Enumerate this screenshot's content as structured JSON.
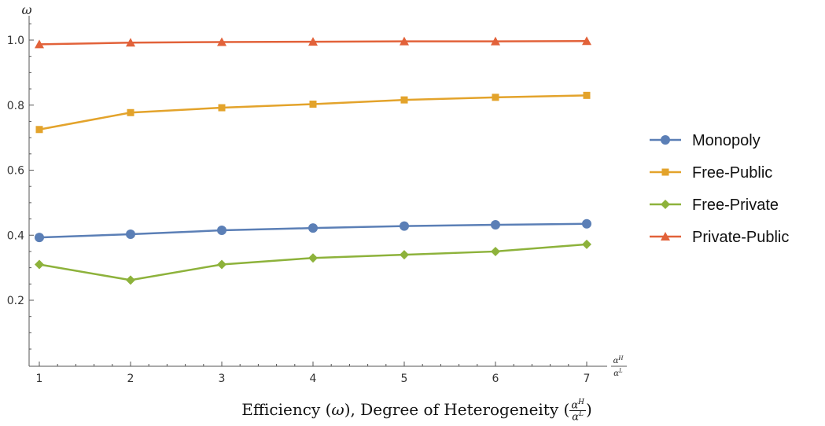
{
  "chart_data": {
    "type": "line",
    "x": [
      1,
      2,
      3,
      4,
      5,
      6,
      7
    ],
    "xticks": [
      "1",
      "2",
      "3",
      "4",
      "5",
      "6",
      "7"
    ],
    "yticks": [
      "0.2",
      "0.4",
      "0.6",
      "0.8",
      "1.0"
    ],
    "ylabel": "ω",
    "xlabel_axis": "αH/αL",
    "caption": "Efficiency (ω), Degree of Heterogeneity (αH/αL)",
    "xlim": [
      0.95,
      7.2
    ],
    "ylim": [
      0,
      1.05
    ],
    "grid": false,
    "legend_position": "right",
    "series": [
      {
        "name": "Monopoly",
        "color": "#5b7fb6",
        "marker": "circle",
        "values": [
          0.393,
          0.403,
          0.415,
          0.422,
          0.428,
          0.432,
          0.435
        ]
      },
      {
        "name": "Free-Public",
        "color": "#e3a32b",
        "marker": "square",
        "values": [
          0.725,
          0.777,
          0.792,
          0.803,
          0.816,
          0.824,
          0.83
        ]
      },
      {
        "name": "Free-Private",
        "color": "#8db23b",
        "marker": "diamond",
        "values": [
          0.31,
          0.262,
          0.31,
          0.33,
          0.34,
          0.35,
          0.372
        ]
      },
      {
        "name": "Private-Public",
        "color": "#e2623a",
        "marker": "triangle",
        "values": [
          0.987,
          0.992,
          0.994,
          0.995,
          0.996,
          0.996,
          0.997
        ]
      }
    ]
  }
}
